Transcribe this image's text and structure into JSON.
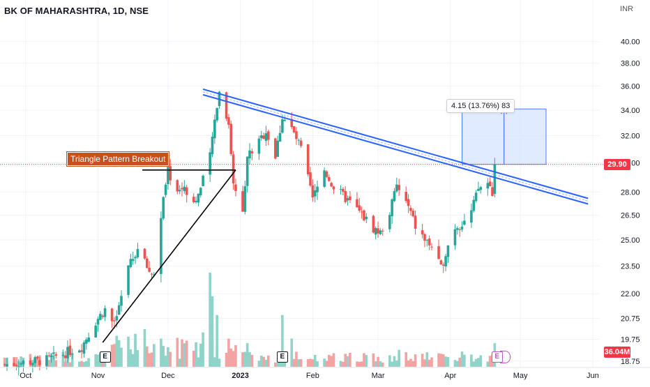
{
  "title": "BK OF MAHARASHTRA, 1D, NSE",
  "currency": "INR",
  "annotation": "Triangle Pattern Breakout",
  "measure_label": "4.15 (13.76%) 83",
  "last_price_label": "29.90",
  "volume_label": "36.04M",
  "earnings_marker": "E",
  "colors": {
    "up": "#26a69a",
    "down": "#ef5350",
    "volume_up": "#8fd3c9",
    "volume_down": "#f4a3a3",
    "trendline": "#2962ff",
    "measure_fill": "#d6e4ff",
    "annotation_bg": "#c8501a",
    "last_price": "#f23645"
  },
  "chart_data": {
    "type": "candlestick",
    "title": "BK OF MAHARASHTRA, 1D, NSE",
    "y_scale": "log",
    "yticks": [
      "18.75",
      "19.75",
      "20.75",
      "22.00",
      "23.50",
      "25.00",
      "26.50",
      "28.00",
      "30.00",
      "32.00",
      "34.00",
      "36.00",
      "38.00",
      "40.00"
    ],
    "xticks": [
      "Oct",
      "Nov",
      "Dec",
      "2023",
      "Feb",
      "Mar",
      "Apr",
      "May",
      "Jun"
    ],
    "xtick_dates": [
      "2022-10-01",
      "2022-11-01",
      "2022-12-01",
      "2023-01-01",
      "2023-02-01",
      "2023-03-01",
      "2023-04-01",
      "2023-05-01",
      "2023-06-01"
    ],
    "date_range": [
      "2022-09-20",
      "2023-06-10"
    ],
    "y_range": [
      18.5,
      43
    ],
    "last_price": 29.9,
    "volume_last": "36.04M",
    "price_path": [
      [
        "2022-09-22",
        18.6
      ],
      [
        "2022-10-10",
        18.8
      ],
      [
        "2022-10-25",
        19.4
      ],
      [
        "2022-10-31",
        20.6
      ],
      [
        "2022-11-04",
        21.2
      ],
      [
        "2022-11-08",
        20.4
      ],
      [
        "2022-11-11",
        21.8
      ],
      [
        "2022-11-15",
        23.8
      ],
      [
        "2022-11-18",
        24.4
      ],
      [
        "2022-11-23",
        23.2
      ],
      [
        "2022-11-25",
        23.0
      ],
      [
        "2022-11-28",
        26.5
      ],
      [
        "2022-12-01",
        29.4
      ],
      [
        "2022-12-05",
        28.0
      ],
      [
        "2022-12-08",
        28.4
      ],
      [
        "2022-12-12",
        27.3
      ],
      [
        "2022-12-15",
        28.2
      ],
      [
        "2022-12-19",
        30.5
      ],
      [
        "2022-12-22",
        34.5
      ],
      [
        "2022-12-23",
        35.5
      ],
      [
        "2022-12-27",
        33.0
      ],
      [
        "2022-12-29",
        28.5
      ],
      [
        "2023-01-02",
        27.0
      ],
      [
        "2023-01-04",
        30.5
      ],
      [
        "2023-01-09",
        31.5
      ],
      [
        "2023-01-12",
        32.4
      ],
      [
        "2023-01-16",
        30.4
      ],
      [
        "2023-01-19",
        33.5
      ],
      [
        "2023-01-23",
        32.5
      ],
      [
        "2023-01-27",
        31.0
      ],
      [
        "2023-02-01",
        27.5
      ],
      [
        "2023-02-06",
        29.5
      ],
      [
        "2023-02-10",
        28.3
      ],
      [
        "2023-02-15",
        27.6
      ],
      [
        "2023-02-21",
        26.7
      ],
      [
        "2023-02-27",
        25.7
      ],
      [
        "2023-03-02",
        25.4
      ],
      [
        "2023-03-06",
        26.7
      ],
      [
        "2023-03-09",
        28.4
      ],
      [
        "2023-03-14",
        27.0
      ],
      [
        "2023-03-17",
        25.8
      ],
      [
        "2023-03-21",
        25.0
      ],
      [
        "2023-03-24",
        24.6
      ],
      [
        "2023-03-28",
        23.3
      ],
      [
        "2023-03-30",
        24.3
      ],
      [
        "2023-04-03",
        25.8
      ],
      [
        "2023-04-06",
        26.0
      ],
      [
        "2023-04-10",
        26.7
      ],
      [
        "2023-04-13",
        28.2
      ],
      [
        "2023-04-17",
        28.6
      ],
      [
        "2023-04-19",
        28.0
      ],
      [
        "2023-04-20",
        29.9
      ]
    ],
    "volume_spikes": [
      [
        "2022-11-17",
        0.35
      ],
      [
        "2022-11-21",
        0.4
      ],
      [
        "2022-12-08",
        0.25
      ],
      [
        "2022-12-19",
        1.0
      ],
      [
        "2022-12-20",
        0.75
      ],
      [
        "2022-12-22",
        0.55
      ],
      [
        "2023-01-19",
        0.55
      ],
      [
        "2023-01-23",
        0.3
      ],
      [
        "2023-03-10",
        0.18
      ],
      [
        "2023-04-20",
        0.25
      ]
    ],
    "annotations": [
      {
        "type": "text",
        "text": "Triangle Pattern Breakout"
      },
      {
        "type": "horizontal_line",
        "from": "2022-11-20",
        "to": "2022-12-30",
        "y": 29.5
      },
      {
        "type": "line",
        "from": [
          "2022-11-03",
          19.6
        ],
        "to": [
          "2022-12-30",
          29.5
        ]
      },
      {
        "type": "trendline_channel",
        "from": [
          "2022-12-16",
          35.5
        ],
        "to": [
          "2023-05-30",
          27.4
        ]
      },
      {
        "type": "measure",
        "from": "2023-04-06",
        "to": "2023-05-12",
        "y_low": 29.9,
        "y_high": 34.1,
        "label": "4.15 (13.76%) 83"
      }
    ],
    "earnings_dates": [
      "2022-11-04",
      "2023-01-19",
      "2023-04-21"
    ]
  }
}
